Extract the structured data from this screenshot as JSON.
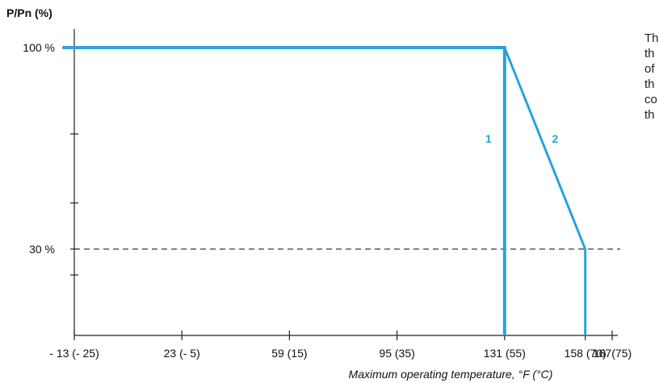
{
  "chart_data": {
    "type": "line",
    "ylabel": "P/Pn (%)",
    "xlabel": "Maximum operating temperature, °F (°C)",
    "x_ticks": [
      {
        "value": -13,
        "label": "- 13 (- 25)"
      },
      {
        "value": 23,
        "label": "23 (- 5)"
      },
      {
        "value": 59,
        "label": "59 (15)"
      },
      {
        "value": 95,
        "label": "95 (35)"
      },
      {
        "value": 131,
        "label": "131 (55)"
      },
      {
        "value": 158,
        "label": "158 (70)"
      },
      {
        "value": 167,
        "label": "167(75)"
      }
    ],
    "y_labels": [
      {
        "value": 100,
        "label": "100 %"
      },
      {
        "value": 30,
        "label": "30 %"
      }
    ],
    "y_minor_ticks": [
      70,
      46,
      21
    ],
    "xlim": [
      -13,
      167
    ],
    "ylim": [
      0,
      100
    ],
    "reference_line": {
      "y": 30,
      "style": "dashed"
    },
    "series": [
      {
        "label": "1",
        "color": "#29a3d9",
        "points": [
          [
            -17,
            100
          ],
          [
            131,
            100
          ],
          [
            131,
            0
          ]
        ]
      },
      {
        "label": "2",
        "color": "#29a3d9",
        "points": [
          [
            131,
            100
          ],
          [
            158,
            30
          ],
          [
            158,
            0
          ]
        ]
      }
    ]
  },
  "side_text_fragment": [
    "Th",
    "th",
    "of",
    "th",
    "co",
    "th"
  ]
}
